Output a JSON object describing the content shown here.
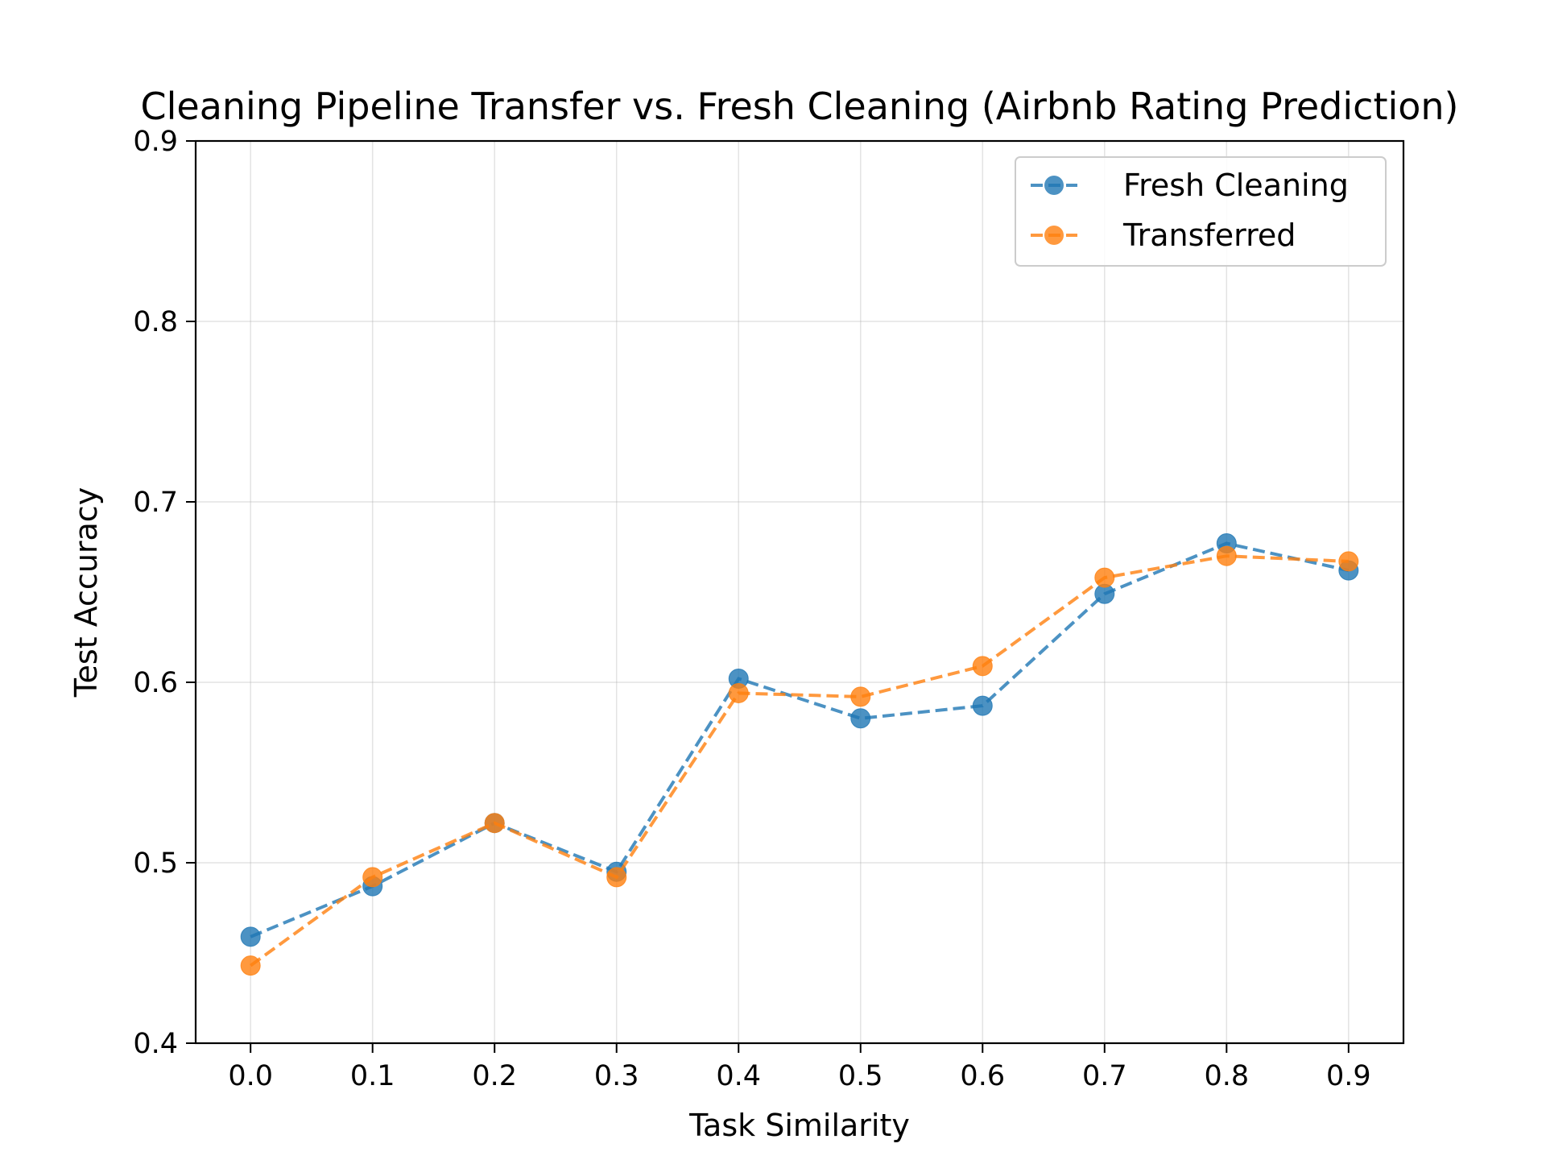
{
  "chart_data": {
    "type": "line",
    "title": "Cleaning Pipeline Transfer vs. Fresh Cleaning (Airbnb Rating Prediction)",
    "xlabel": "Task Similarity",
    "ylabel": "Test Accuracy",
    "x": [
      0.0,
      0.1,
      0.2,
      0.3,
      0.4,
      0.5,
      0.6,
      0.7,
      0.8,
      0.9
    ],
    "x_tick_labels": [
      "0.0",
      "0.1",
      "0.2",
      "0.3",
      "0.4",
      "0.5",
      "0.6",
      "0.7",
      "0.8",
      "0.9"
    ],
    "xlim": [
      -0.045,
      0.945
    ],
    "ylim": [
      0.4,
      0.9
    ],
    "y_ticks": [
      0.4,
      0.5,
      0.6,
      0.7,
      0.8,
      0.9
    ],
    "y_tick_labels": [
      "0.4",
      "0.5",
      "0.6",
      "0.7",
      "0.8",
      "0.9"
    ],
    "grid": true,
    "legend_position": "top-right",
    "series": [
      {
        "name": "Fresh Cleaning",
        "color": "#1f77b4",
        "line_style": "dashed",
        "marker": "circle",
        "values": [
          0.459,
          0.487,
          0.522,
          0.495,
          0.602,
          0.58,
          0.587,
          0.649,
          0.677,
          0.662
        ]
      },
      {
        "name": "Transferred",
        "color": "#ff7f0e",
        "line_style": "dashed",
        "marker": "circle",
        "values": [
          0.443,
          0.492,
          0.522,
          0.492,
          0.594,
          0.592,
          0.609,
          0.658,
          0.67,
          0.667
        ]
      }
    ]
  }
}
